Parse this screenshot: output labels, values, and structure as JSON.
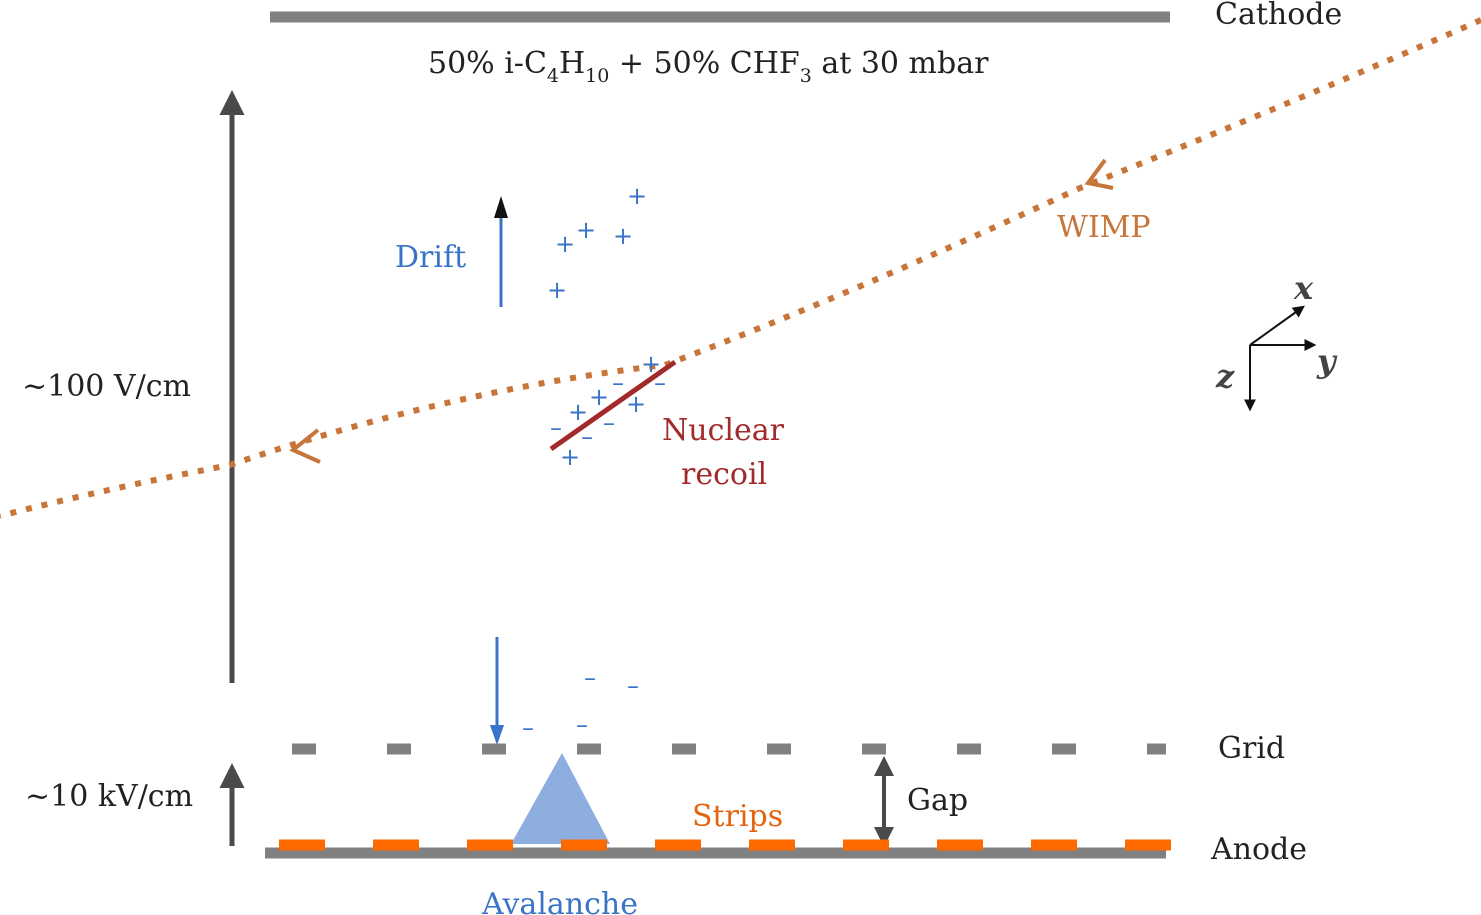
{
  "colors": {
    "electrode": "#808080",
    "field_arrow": "#4a4a4a",
    "wimp": "#c8753a",
    "recoil": "#a32a2a",
    "charge": "#3a74c9",
    "strips": "#ff6a00",
    "avalanche": "#8eaee0",
    "text_dark": "#222222"
  },
  "labels": {
    "cathode": "Cathode",
    "gas_prefix": "50% i-C",
    "gas_sub1": "4",
    "gas_mid1": "H",
    "gas_sub2": "10",
    "gas_mid2": " + 50% CHF",
    "gas_sub3": "3",
    "gas_suffix": " at 30 mbar",
    "drift_field": "~100 V/cm",
    "amp_field": "~10 kV/cm",
    "drift": "Drift",
    "wimp": "WIMP",
    "nuclear_recoil_line1": "Nuclear",
    "nuclear_recoil_line2": "recoil",
    "grid": "Grid",
    "gap": "Gap",
    "strips": "Strips",
    "anode": "Anode",
    "avalanche": "Avalanche"
  },
  "axes": {
    "x": "x",
    "y": "y",
    "z": "z"
  },
  "charges": {
    "plus": "+",
    "minus": "–"
  }
}
